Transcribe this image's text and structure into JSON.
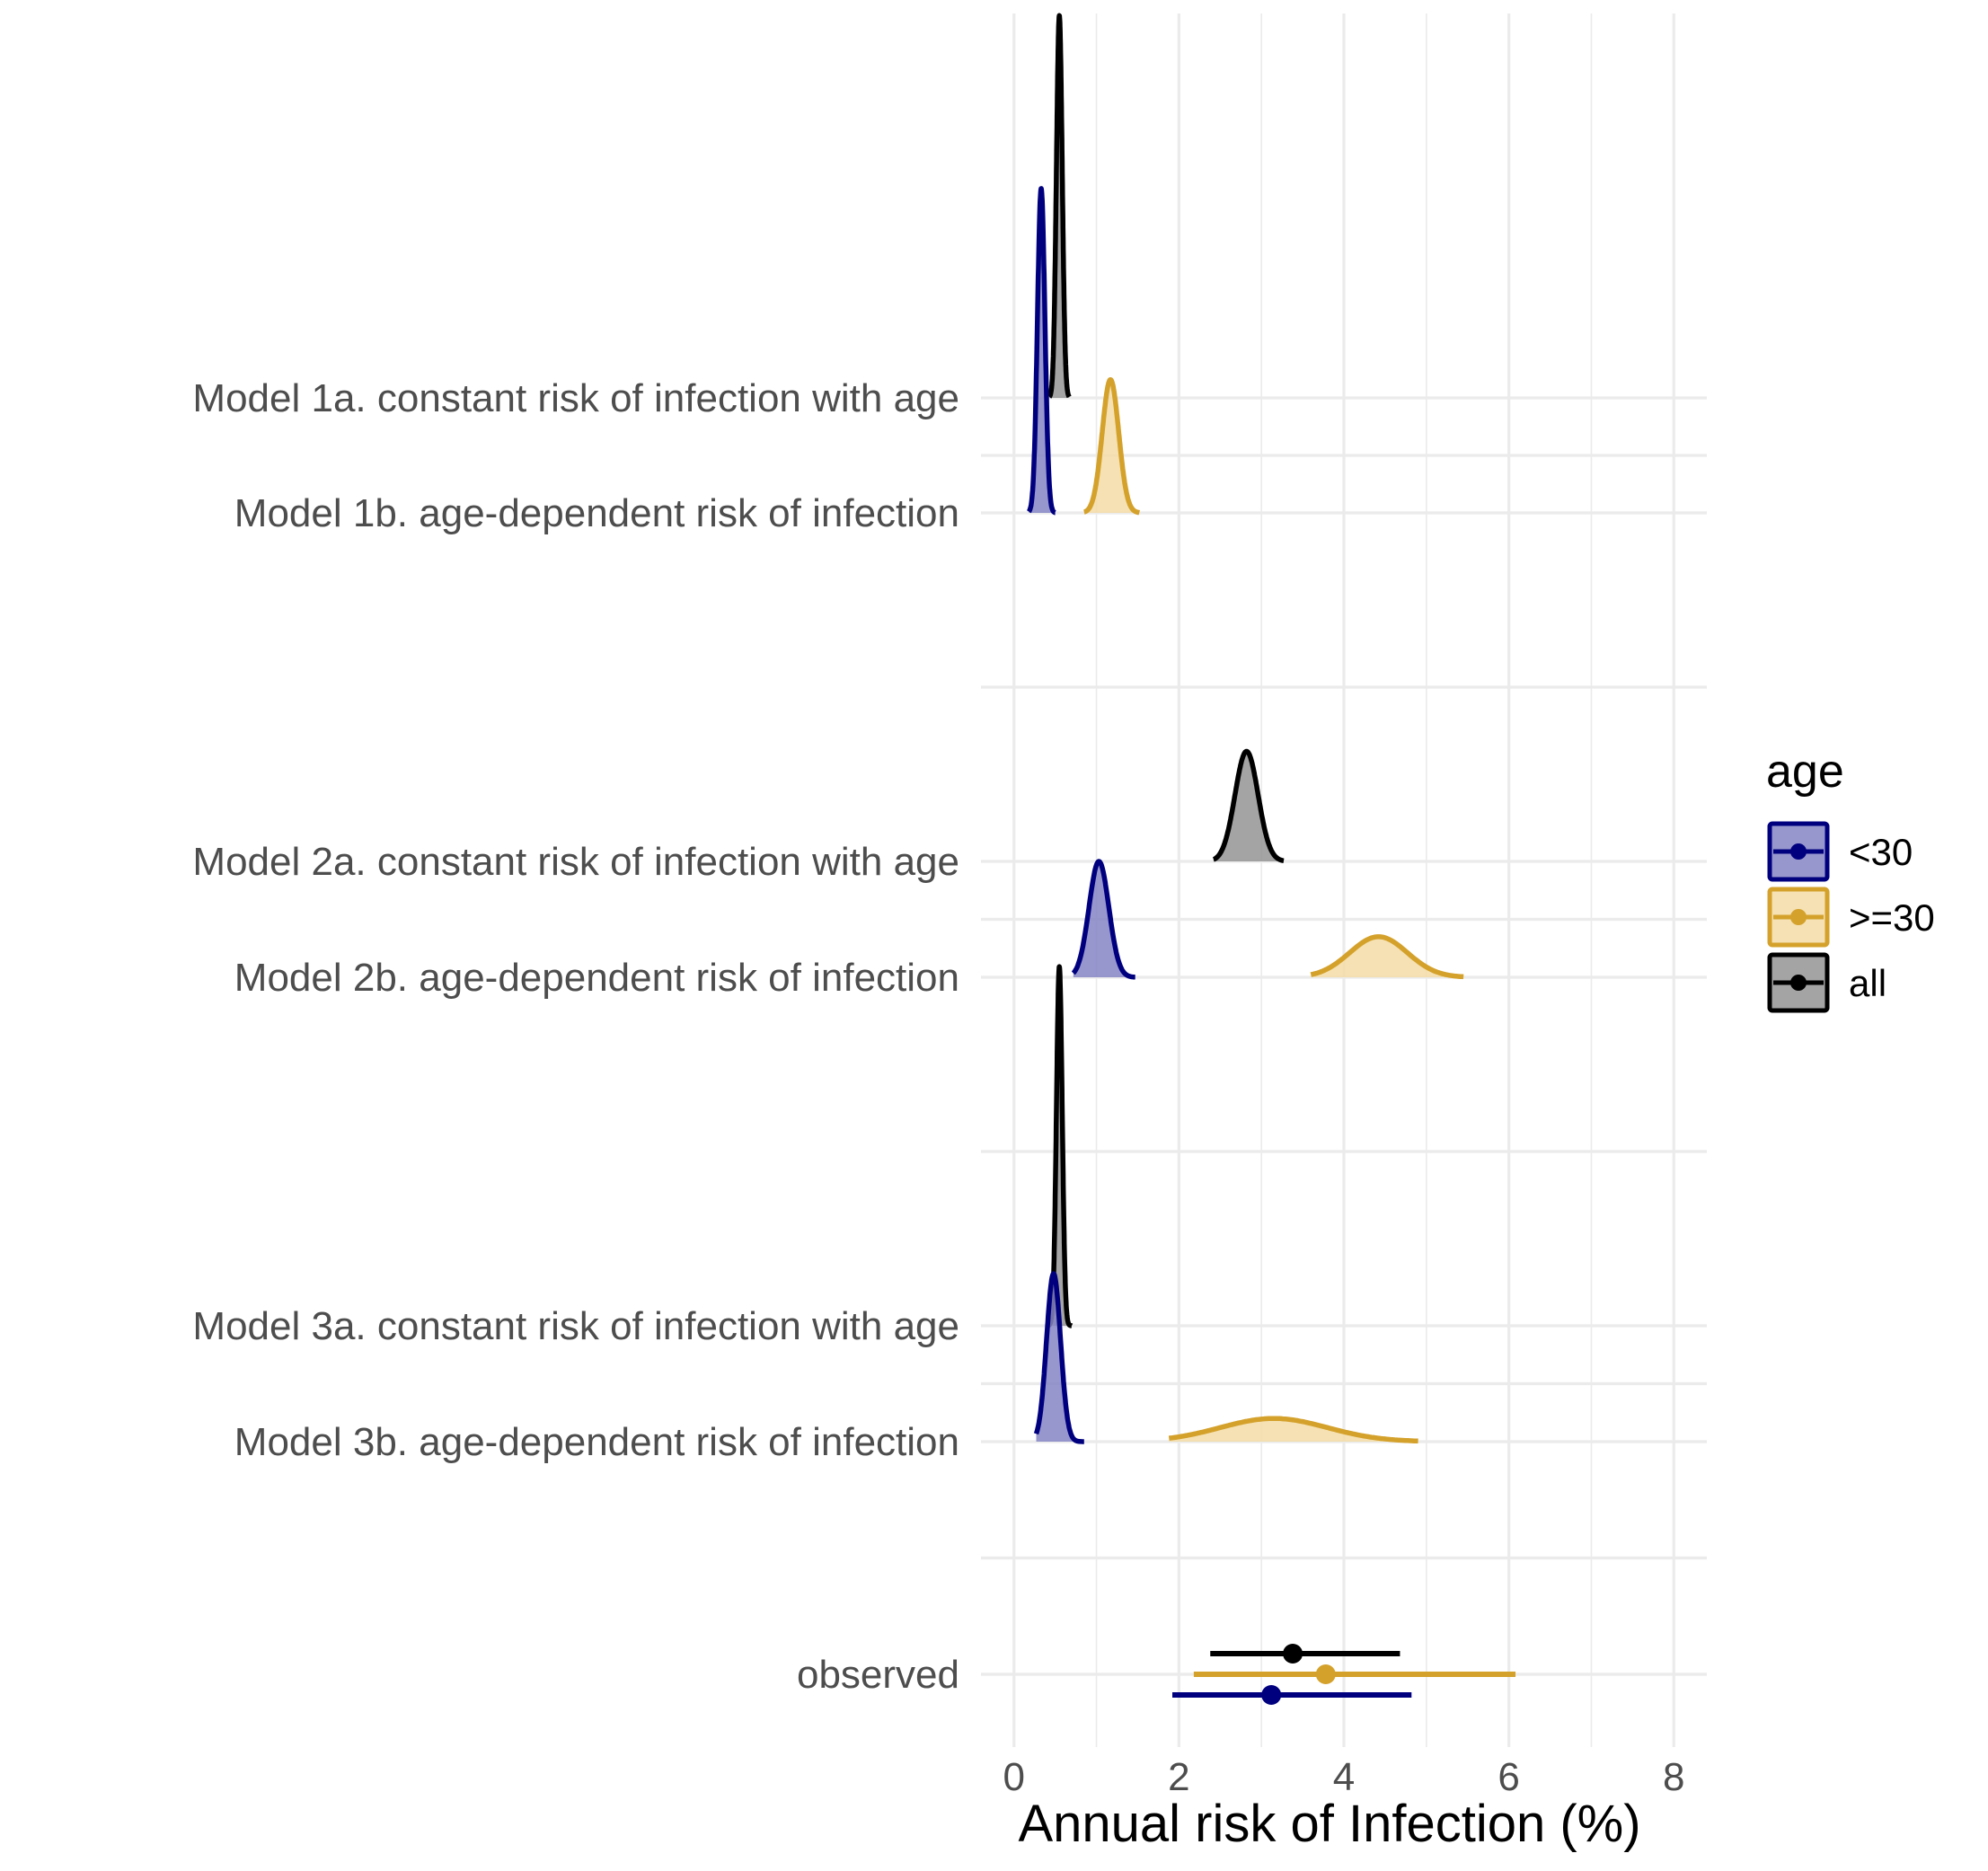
{
  "chart_data": {
    "type": "ridgeline",
    "title": "",
    "xlabel": "Annual risk of Infection (%)",
    "ylabel": "",
    "xlim": [
      -0.4,
      8.4
    ],
    "xticks": [
      0,
      2,
      4,
      6,
      8
    ],
    "grid": true,
    "legend_position": "right",
    "categories": [
      "Model 1a. constant risk of infection with age",
      "Model 1b. age-dependent risk of infection",
      "Model 2a. constant risk of infection with age",
      "Model 2b. age-dependent risk of infection",
      "Model 3a. constant risk of infection with age",
      "Model 3b. age-dependent risk of infection",
      "observed"
    ],
    "legend": {
      "title": "age",
      "entries": [
        {
          "label": "<30",
          "key": "lt30"
        },
        {
          "label": ">=30",
          "key": "ge30"
        },
        {
          "label": "all",
          "key": "all"
        }
      ]
    },
    "colors": {
      "lt30": {
        "line": "#00007f",
        "fill": "#8585c6"
      },
      "ge30": {
        "line": "#d4a12b",
        "fill": "#f3dca6"
      },
      "all": {
        "line": "#000000",
        "fill": "#949494"
      },
      "grid": "#ebebeb"
    },
    "densities": [
      {
        "row": "Model 1a. constant risk of infection with age",
        "group": "all",
        "mean": 0.55,
        "sd": 0.035,
        "min": 0.43,
        "max": 0.67,
        "height": 3.3
      },
      {
        "row": "Model 1b. age-dependent risk of infection",
        "group": "lt30",
        "mean": 0.33,
        "sd": 0.045,
        "min": 0.18,
        "max": 0.5,
        "height": 2.8
      },
      {
        "row": "Model 1b. age-dependent risk of infection",
        "group": "ge30",
        "mean": 1.17,
        "sd": 0.1,
        "min": 0.85,
        "max": 1.52,
        "height": 1.15
      },
      {
        "row": "Model 2a. constant risk of infection with age",
        "group": "all",
        "mean": 2.82,
        "sd": 0.14,
        "min": 2.42,
        "max": 3.27,
        "height": 0.95
      },
      {
        "row": "Model 2b. age-dependent risk of infection",
        "group": "lt30",
        "mean": 1.03,
        "sd": 0.12,
        "min": 0.72,
        "max": 1.47,
        "height": 1.0
      },
      {
        "row": "Model 2b. age-dependent risk of infection",
        "group": "ge30",
        "mean": 4.42,
        "sd": 0.35,
        "min": 3.6,
        "max": 5.45,
        "height": 0.35
      },
      {
        "row": "Model 3a. constant risk of infection with age",
        "group": "all",
        "mean": 0.55,
        "sd": 0.035,
        "min": 0.42,
        "max": 0.7,
        "height": 3.1
      },
      {
        "row": "Model 3b. age-dependent risk of infection",
        "group": "lt30",
        "mean": 0.48,
        "sd": 0.085,
        "min": 0.27,
        "max": 0.85,
        "height": 1.45
      },
      {
        "row": "Model 3b. age-dependent risk of infection",
        "group": "ge30",
        "mean": 3.15,
        "sd": 0.65,
        "min": 1.88,
        "max": 4.9,
        "height": 0.2
      }
    ],
    "observed": [
      {
        "group": "all",
        "estimate": 3.38,
        "lower": 2.38,
        "upper": 4.68
      },
      {
        "group": "ge30",
        "estimate": 3.78,
        "lower": 2.18,
        "upper": 6.08
      },
      {
        "group": "lt30",
        "estimate": 3.12,
        "lower": 1.92,
        "upper": 4.82
      }
    ]
  }
}
